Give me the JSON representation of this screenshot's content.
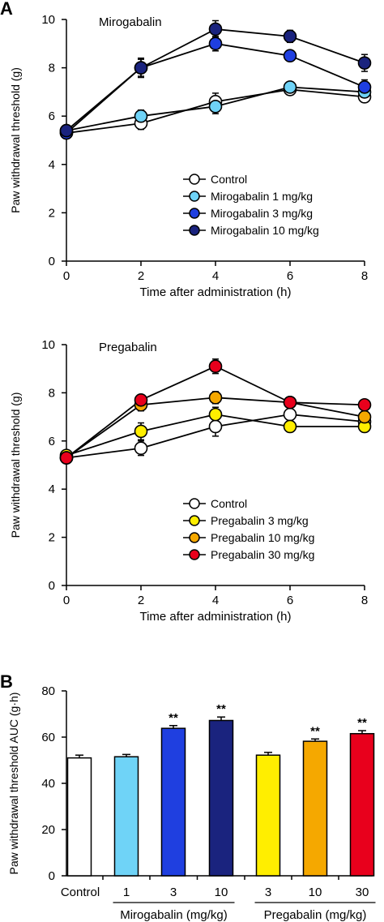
{
  "panel_labels": {
    "a": "A",
    "b": "B"
  },
  "chart_data": [
    {
      "type": "line",
      "title": "Mirogabalin",
      "xlabel": "Time after administration (h)",
      "ylabel": "Paw withdrawal threshold (g)",
      "x": [
        0,
        2,
        4,
        6,
        8
      ],
      "xlim": [
        0,
        8
      ],
      "ylim": [
        0,
        10
      ],
      "xticks": [
        "0",
        "2",
        "4",
        "6",
        "8"
      ],
      "yticks": [
        "0",
        "2",
        "4",
        "6",
        "8",
        "10"
      ],
      "grid": false,
      "legend_position": "bottom-right",
      "series": [
        {
          "name": "Control",
          "color": "#ffffff",
          "values": [
            5.3,
            5.7,
            6.6,
            7.1,
            6.8
          ],
          "errors": [
            0.2,
            0.25,
            0.35,
            0.2,
            0.2
          ]
        },
        {
          "name": "Mirogabalin 1 mg/kg",
          "color": "#6fd3f7",
          "values": [
            5.4,
            6.0,
            6.4,
            7.2,
            7.0
          ],
          "errors": [
            0.2,
            0.25,
            0.3,
            0.2,
            0.2
          ]
        },
        {
          "name": "Mirogabalin 3 mg/kg",
          "color": "#1f3fe0",
          "values": [
            5.3,
            8.0,
            9.0,
            8.5,
            7.2
          ],
          "errors": [
            0.2,
            0.35,
            0.3,
            0.2,
            0.3
          ]
        },
        {
          "name": "Mirogabalin 10 mg/kg",
          "color": "#1a237e",
          "values": [
            5.4,
            8.0,
            9.6,
            9.3,
            8.2
          ],
          "errors": [
            0.2,
            0.4,
            0.35,
            0.25,
            0.35
          ]
        }
      ]
    },
    {
      "type": "line",
      "title": "Pregabalin",
      "xlabel": "Time after administration (h)",
      "ylabel": "Paw withdrawal threshold (g)",
      "x": [
        0,
        2,
        4,
        6,
        8
      ],
      "xlim": [
        0,
        8
      ],
      "ylim": [
        0,
        10
      ],
      "xticks": [
        "0",
        "2",
        "4",
        "6",
        "8"
      ],
      "yticks": [
        "0",
        "2",
        "4",
        "6",
        "8",
        "10"
      ],
      "grid": false,
      "legend_position": "bottom-right",
      "series": [
        {
          "name": "Control",
          "color": "#ffffff",
          "values": [
            5.3,
            5.7,
            6.6,
            7.1,
            6.8
          ],
          "errors": [
            0.2,
            0.3,
            0.4,
            0.2,
            0.2
          ]
        },
        {
          "name": "Pregabalin 3 mg/kg",
          "color": "#ffee00",
          "values": [
            5.4,
            6.4,
            7.1,
            6.6,
            6.6
          ],
          "errors": [
            0.2,
            0.35,
            0.3,
            0.2,
            0.2
          ]
        },
        {
          "name": "Pregabalin 10 mg/kg",
          "color": "#f5a800",
          "values": [
            5.3,
            7.5,
            7.8,
            7.6,
            7.0
          ],
          "errors": [
            0.2,
            0.25,
            0.25,
            0.2,
            0.2
          ]
        },
        {
          "name": "Pregabalin 30 mg/kg",
          "color": "#e8001c",
          "values": [
            5.3,
            7.7,
            9.1,
            7.6,
            7.5
          ],
          "errors": [
            0.2,
            0.2,
            0.3,
            0.2,
            0.2
          ]
        }
      ]
    },
    {
      "type": "bar",
      "ylabel": "Paw withdrawal threshold AUC (g·h)",
      "ylim": [
        0,
        80
      ],
      "yticks": [
        "0",
        "20",
        "40",
        "60",
        "80"
      ],
      "categories": [
        "Control",
        "1",
        "3",
        "10",
        "3",
        "10",
        "30"
      ],
      "values": [
        51,
        51.5,
        63.8,
        67.2,
        52.2,
        58.2,
        61.5
      ],
      "errors": [
        1.2,
        1.0,
        1.2,
        1.5,
        1.2,
        1.0,
        1.3
      ],
      "colors": [
        "#ffffff",
        "#6fd3f7",
        "#1f3fe0",
        "#1a237e",
        "#ffee00",
        "#f5a800",
        "#e8001c"
      ],
      "significance": [
        "",
        "",
        "**",
        "**",
        "",
        "**",
        "**"
      ],
      "group_labels": [
        {
          "label": "Mirogabalin (mg/kg)",
          "first": 1,
          "last": 3
        },
        {
          "label": "Pregabalin (mg/kg)",
          "first": 4,
          "last": 6
        }
      ],
      "grid": false
    }
  ]
}
